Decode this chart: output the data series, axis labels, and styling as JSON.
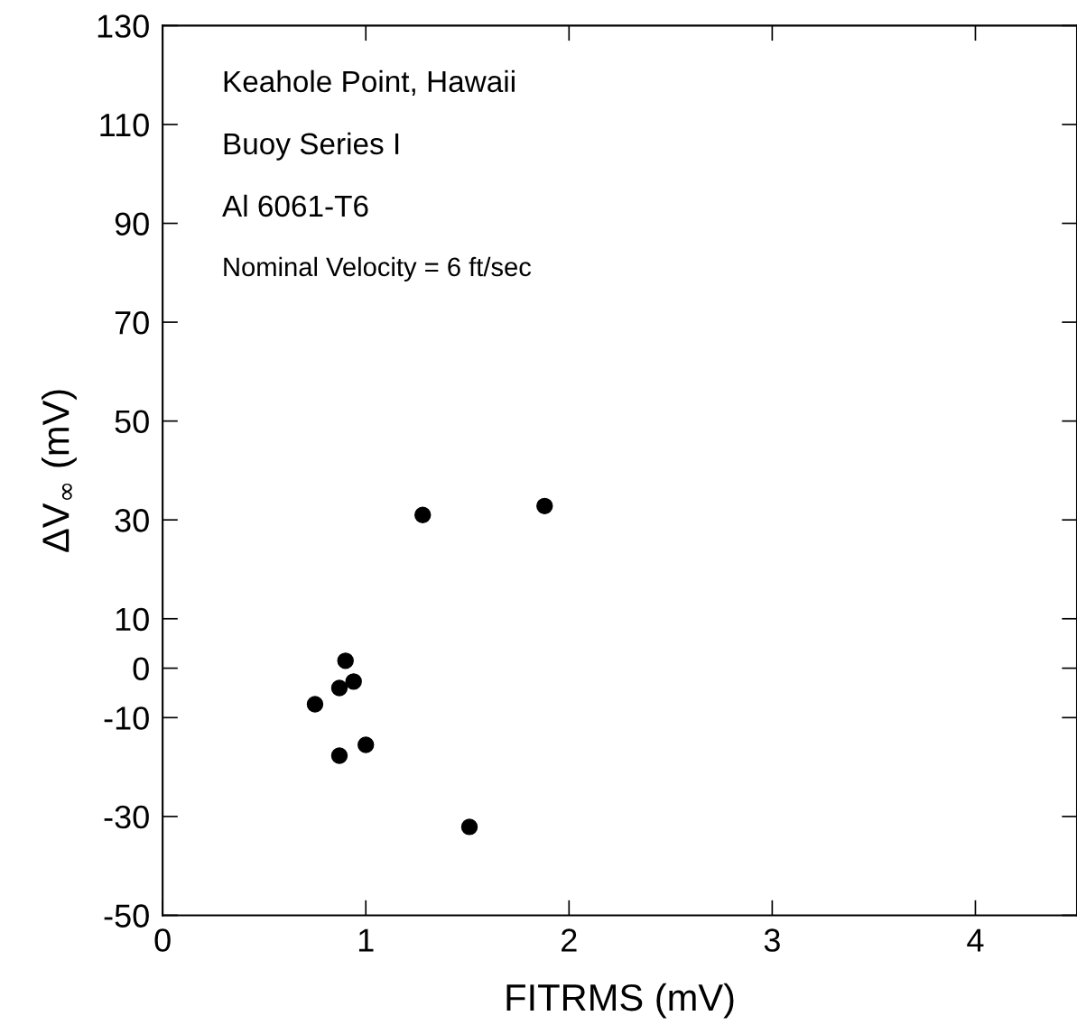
{
  "chart_data": {
    "type": "scatter",
    "xlabel": "FITRMS (mV)",
    "ylabel": "ΔV$_{∞}$ (mV)",
    "annotations": [
      "Keahole Point, Hawaii",
      "Buoy Series I",
      "Al 6061-T6",
      "Nominal Velocity = 6 ft/sec"
    ],
    "x": [
      0.75,
      0.87,
      0.87,
      0.9,
      0.94,
      1.0,
      1.28,
      1.51,
      1.88
    ],
    "values": [
      -7.3,
      -4.0,
      -17.7,
      1.5,
      -2.7,
      -15.5,
      31.0,
      -32.1,
      32.8
    ],
    "color": "#000000",
    "marker": "circle",
    "xlim": [
      0,
      4.5
    ],
    "xticks": [
      0,
      1,
      2,
      3,
      4
    ],
    "ylim": [
      -50,
      130
    ],
    "yticks": [
      -50,
      -30,
      -10,
      0,
      10,
      30,
      50,
      70,
      90,
      110,
      130
    ],
    "grid": false,
    "legend": false
  }
}
